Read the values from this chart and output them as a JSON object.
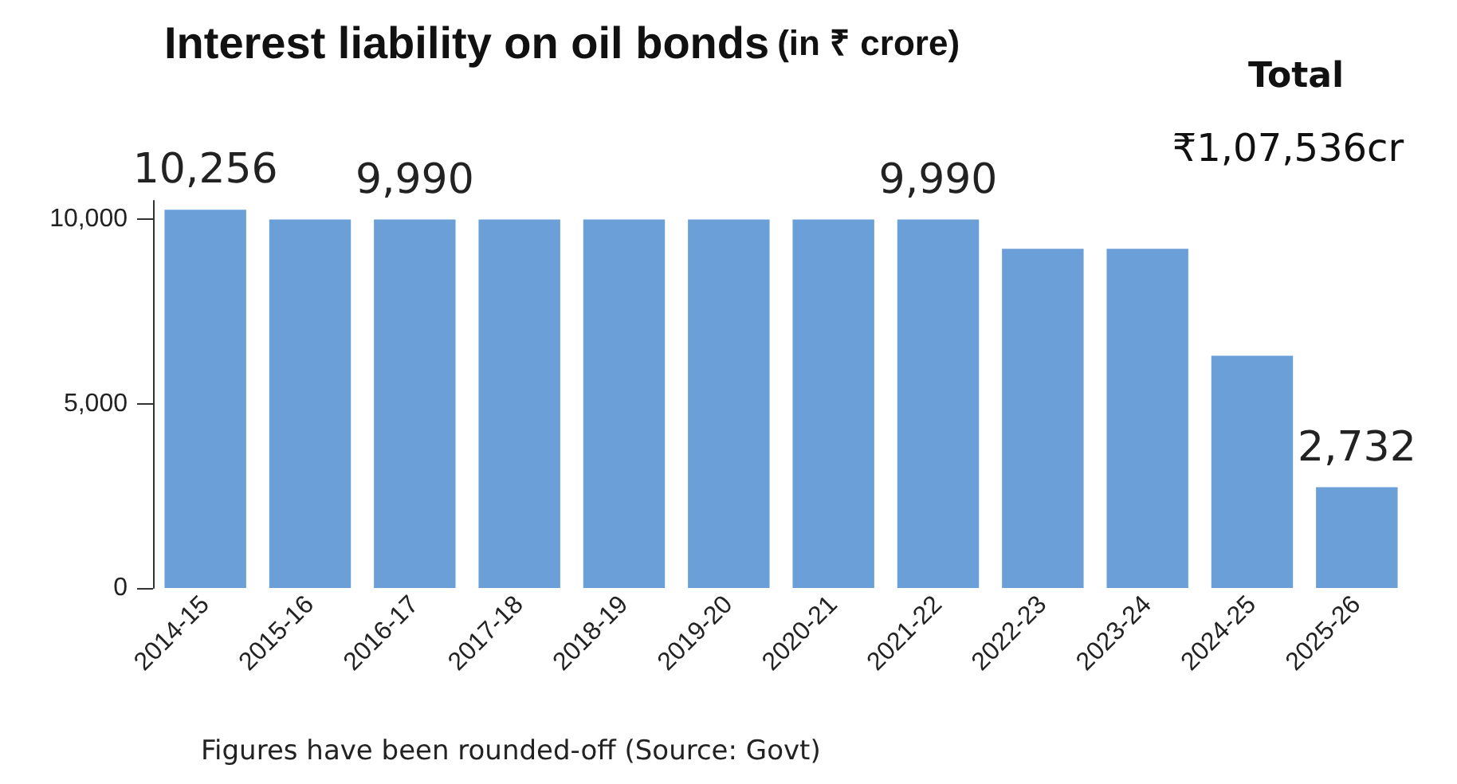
{
  "chart_data": {
    "type": "bar",
    "title": "Interest liability on oil bonds",
    "subtitle": "(in ₹ crore)",
    "categories": [
      "2014-15",
      "2015-16",
      "2016-17",
      "2017-18",
      "2018-19",
      "2019-20",
      "2020-21",
      "2021-22",
      "2022-23",
      "2023-24",
      "2024-25",
      "2025-26"
    ],
    "values": [
      10256,
      9990,
      9990,
      9990,
      9990,
      9990,
      9990,
      9990,
      9200,
      9200,
      6300,
      2732
    ],
    "value_labels": [
      "10,256",
      null,
      "9,990",
      null,
      null,
      null,
      null,
      "9,990",
      null,
      null,
      null,
      "2,732"
    ],
    "color": "#6a9fd8",
    "ylim": [
      0,
      10500
    ],
    "yticks": [
      {
        "value": 0,
        "label": "0"
      },
      {
        "value": 5000,
        "label": "5,000"
      },
      {
        "value": 10000,
        "label": "10,000"
      }
    ],
    "grid": false,
    "annotations": [
      "Total",
      "₹1,07,536cr",
      "Figures have been rounded-off (Source: Govt)"
    ]
  }
}
